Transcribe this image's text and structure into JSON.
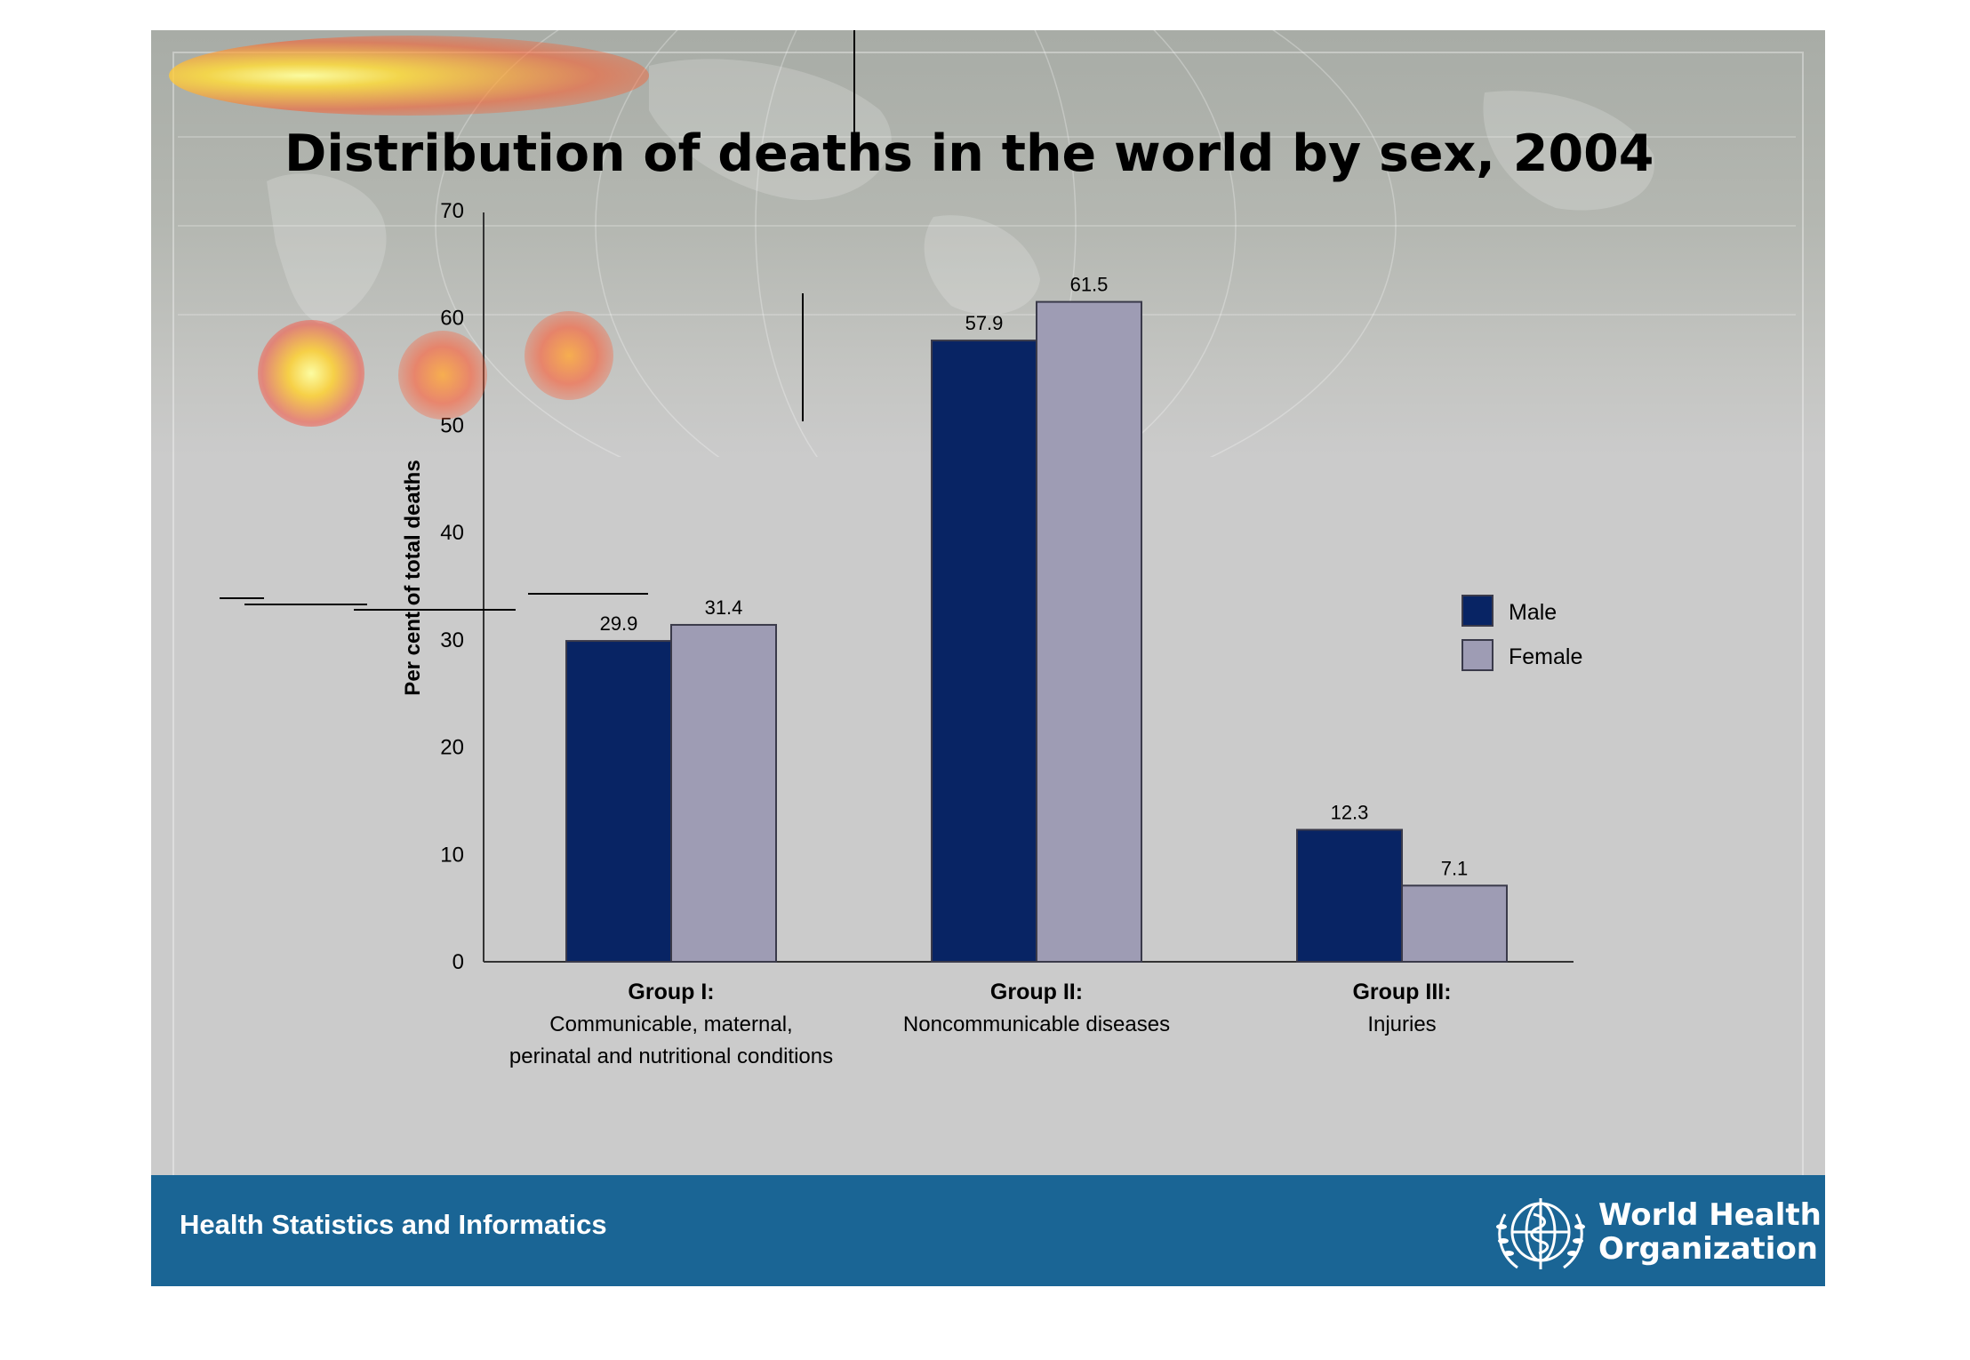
{
  "slide": {
    "title": "Distribution of deaths in the world by sex, 2004",
    "footer_text": "Health Statistics and Informatics",
    "organization_line1": "World Health",
    "organization_line2": "Organization",
    "logo_icon": "who-emblem-icon"
  },
  "colors": {
    "male": "#082464",
    "female": "#9e9cb4",
    "footer": "#1a6595",
    "background": "#cbcbcb"
  },
  "chart_data": {
    "type": "bar",
    "title": "Distribution of deaths in the world by sex, 2004",
    "ylabel": "Per cent of total deaths",
    "xlabel": "",
    "ylim": [
      0,
      70
    ],
    "yticks": [
      0,
      10,
      20,
      30,
      40,
      50,
      60,
      70
    ],
    "grid": false,
    "legend_position": "right",
    "categories": [
      {
        "name": "Group I:",
        "desc": [
          "Communicable, maternal,",
          "perinatal and nutritional conditions"
        ]
      },
      {
        "name": "Group II:",
        "desc": [
          "Noncommunicable diseases"
        ]
      },
      {
        "name": "Group III:",
        "desc": [
          "Injuries"
        ]
      }
    ],
    "series": [
      {
        "name": "Male",
        "values": [
          29.9,
          57.9,
          12.3
        ],
        "labels": [
          "29.9",
          "57.9",
          "12.3"
        ]
      },
      {
        "name": "Female",
        "values": [
          31.4,
          61.5,
          7.1
        ],
        "labels": [
          "31.4",
          "61.5",
          "7.1"
        ]
      }
    ]
  }
}
